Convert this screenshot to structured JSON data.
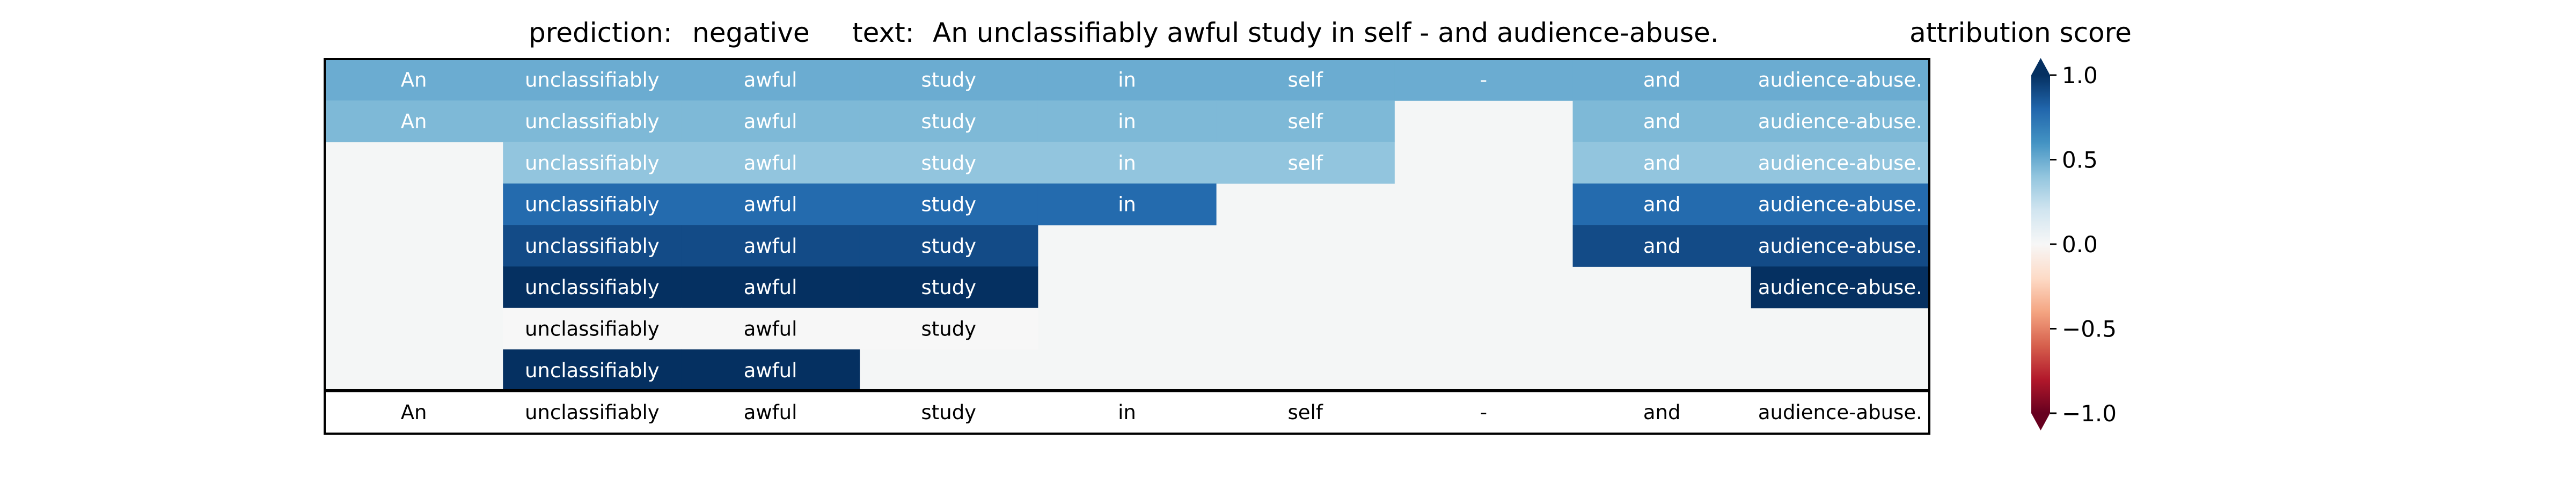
{
  "chart_data": {
    "type": "heatmap",
    "title": {
      "prediction_label": "prediction:",
      "prediction_value": "negative",
      "text_label": "text:",
      "text_value": "An unclassifiably awful study in self - and audience-abuse."
    },
    "tokens": [
      "An",
      "unclassifiably",
      "awful",
      "study",
      "in",
      "self",
      "-",
      "and",
      "audience-abuse."
    ],
    "rows": [
      [
        0.5,
        0.5,
        0.5,
        0.5,
        0.5,
        0.5,
        0.5,
        0.5,
        0.5
      ],
      [
        0.45,
        0.45,
        0.45,
        0.45,
        0.45,
        0.45,
        null,
        0.45,
        0.45
      ],
      [
        null,
        0.4,
        0.4,
        0.4,
        0.4,
        0.4,
        null,
        0.4,
        0.4
      ],
      [
        null,
        0.78,
        0.78,
        0.78,
        0.78,
        null,
        null,
        0.78,
        0.78
      ],
      [
        null,
        0.9,
        0.9,
        0.9,
        null,
        null,
        null,
        0.9,
        0.9
      ],
      [
        null,
        1.0,
        1.0,
        1.0,
        null,
        null,
        null,
        null,
        1.0
      ],
      [
        null,
        0.0,
        0.0,
        0.0,
        null,
        null,
        null,
        null,
        null
      ],
      [
        null,
        1.0,
        1.0,
        null,
        null,
        null,
        null,
        null,
        null
      ]
    ],
    "colorbar": {
      "label": "attribution score",
      "ticks": [
        1.0,
        0.5,
        0.0,
        -0.5,
        -1.0
      ],
      "tick_labels": [
        "1.0",
        "0.5",
        "0.0",
        "−0.5",
        "−1.0"
      ],
      "range": [
        -1.0,
        1.0
      ],
      "colormap": "RdBu"
    }
  },
  "colors": {
    "empty_cell": "#f4f6f6",
    "border": "#000000"
  }
}
